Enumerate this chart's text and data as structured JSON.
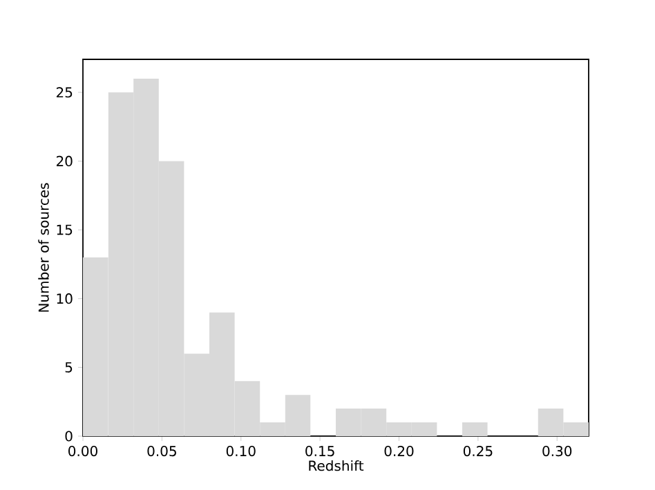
{
  "chart_data": {
    "type": "histogram",
    "xlabel": "Redshift",
    "ylabel": "Number of sources",
    "bins": [
      0,
      0.016,
      0.032,
      0.048,
      0.064,
      0.08,
      0.096,
      0.112,
      0.128,
      0.144,
      0.16,
      0.176,
      0.192,
      0.208,
      0.224,
      0.24,
      0.256,
      0.272,
      0.288,
      0.304,
      0.32
    ],
    "values": [
      13,
      25,
      26,
      20,
      6,
      9,
      4,
      1,
      3,
      0,
      2,
      2,
      1,
      1,
      0,
      1,
      0,
      0,
      2,
      1
    ],
    "color": "#d9d9d9",
    "xlim": [
      0,
      0.32
    ],
    "ylim": [
      0,
      27.4
    ],
    "xticks": [
      {
        "value": 0,
        "label": "0.00"
      },
      {
        "value": 0.05,
        "label": "0.05"
      },
      {
        "value": 0.1,
        "label": "0.10"
      },
      {
        "value": 0.15,
        "label": "0.15"
      },
      {
        "value": 0.2,
        "label": "0.20"
      },
      {
        "value": 0.25,
        "label": "0.25"
      },
      {
        "value": 0.3,
        "label": "0.30"
      }
    ],
    "yticks": [
      0,
      5,
      10,
      15,
      20,
      25
    ]
  }
}
